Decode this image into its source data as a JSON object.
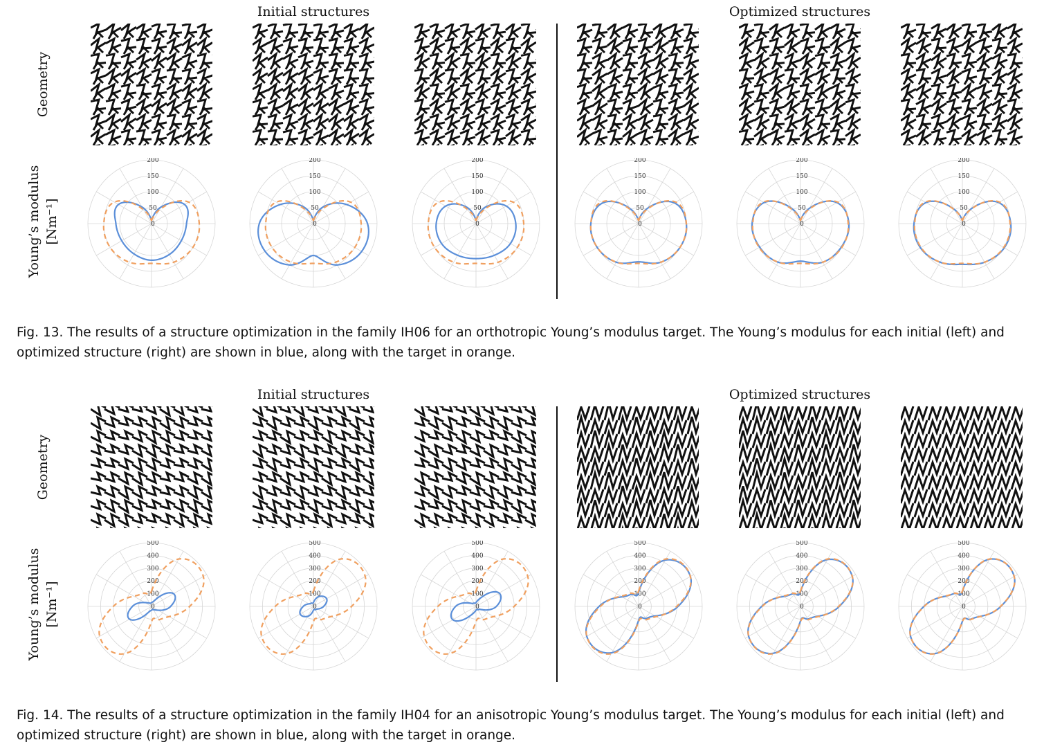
{
  "figures": [
    {
      "initial_label": "Initial structures",
      "optimized_label": "Optimized structures",
      "row_geometry_label": "Geometry",
      "row_modulus_label_line1": "Young’s modulus",
      "row_modulus_label_line2": "[Nm⁻¹]",
      "caption": "Fig. 13.  The results of a structure optimization in the family IH06 for an orthotropic Young’s modulus target. The Young’s modulus for each initial (left) and optimized structure (right) are shown in blue, along with the target in orange.",
      "colors": {
        "measured": "#5b8fd9",
        "target": "#f0a060",
        "grid": "#d6d6d6",
        "ink": "#111111"
      },
      "chart_data": {
        "type": "polar",
        "radial_ticks": [
          "0",
          "50",
          "100",
          "150",
          "200"
        ],
        "rmax": 200,
        "panels": [
          {
            "group": "initial",
            "series": [
              {
                "values": [
                  10,
                  60,
                  120,
                  110,
                  108,
                  112,
                  115,
                  110,
                  108,
                  112,
                  120,
                  60
                ]
              },
              {
                "values": [
                  10,
                  50,
                  135,
                  150,
                  150,
                  140,
                  125,
                  140,
                  150,
                  150,
                  135,
                  50
                ]
              }
            ]
          },
          {
            "group": "initial",
            "series": [
              {
                "values": [
                  10,
                  60,
                  120,
                  170,
                  175,
                  150,
                  100,
                  150,
                  175,
                  170,
                  120,
                  60
                ]
              },
              {
                "values": [
                  10,
                  50,
                  135,
                  150,
                  150,
                  140,
                  125,
                  140,
                  150,
                  150,
                  135,
                  50
                ]
              }
            ]
          },
          {
            "group": "initial",
            "series": [
              {
                "values": [
                  10,
                  60,
                  110,
                  125,
                  125,
                  115,
                  110,
                  115,
                  125,
                  125,
                  110,
                  60
                ]
              },
              {
                "values": [
                  10,
                  50,
                  135,
                  150,
                  150,
                  140,
                  125,
                  140,
                  150,
                  150,
                  135,
                  50
                ]
              }
            ]
          },
          {
            "group": "optimized",
            "series": [
              {
                "values": [
                  10,
                  55,
                  130,
                  150,
                  150,
                  140,
                  120,
                  140,
                  150,
                  150,
                  130,
                  55
                ]
              },
              {
                "values": [
                  10,
                  50,
                  135,
                  150,
                  150,
                  140,
                  125,
                  140,
                  150,
                  150,
                  135,
                  50
                ]
              }
            ]
          },
          {
            "group": "optimized",
            "series": [
              {
                "values": [
                  10,
                  55,
                  132,
                  152,
                  148,
                  140,
                  118,
                  140,
                  148,
                  152,
                  132,
                  55
                ]
              },
              {
                "values": [
                  10,
                  50,
                  135,
                  150,
                  150,
                  140,
                  125,
                  140,
                  150,
                  150,
                  135,
                  50
                ]
              }
            ]
          },
          {
            "group": "optimized",
            "series": [
              {
                "values": [
                  10,
                  52,
                  132,
                  152,
                  152,
                  140,
                  128,
                  140,
                  152,
                  152,
                  132,
                  52
                ]
              },
              {
                "values": [
                  10,
                  50,
                  135,
                  150,
                  150,
                  140,
                  125,
                  140,
                  150,
                  150,
                  135,
                  50
                ]
              }
            ]
          }
        ]
      }
    },
    {
      "initial_label": "Initial structures",
      "optimized_label": "Optimized structures",
      "row_geometry_label": "Geometry",
      "row_modulus_label_line1": "Young’s modulus",
      "row_modulus_label_line2": "[Nm⁻¹]",
      "caption": "Fig. 14.  The results of a structure optimization in the family IH04 for an anisotropic Young’s modulus target. The Young’s modulus for each initial (left) and optimized structure (right) are shown in blue, along with the target in orange.",
      "colors": {
        "measured": "#5b8fd9",
        "target": "#f0a060",
        "grid": "#d6d6d6",
        "ink": "#111111"
      },
      "chart_data": {
        "type": "polar",
        "radial_ticks": [
          "0",
          "100",
          "200",
          "300",
          "400",
          "500"
        ],
        "rmax": 500,
        "panels": [
          {
            "group": "initial",
            "series": [
              {
                "values": [
                  30,
                  60,
                  200,
                  150,
                  60,
                  30,
                  30,
                  60,
                  200,
                  150,
                  60,
                  30
                ]
              },
              {
                "values": [
                  120,
                  430,
                  470,
                  300,
                  160,
                  120,
                  120,
                  430,
                  470,
                  300,
                  160,
                  120
                ]
              }
            ]
          },
          {
            "group": "initial",
            "series": [
              {
                "values": [
                  30,
                  90,
                  120,
                  80,
                  40,
                  30,
                  30,
                  90,
                  120,
                  80,
                  40,
                  30
                ]
              },
              {
                "values": [
                  120,
                  430,
                  470,
                  300,
                  160,
                  120,
                  120,
                  430,
                  470,
                  300,
                  160,
                  120
                ]
              }
            ]
          },
          {
            "group": "initial",
            "series": [
              {
                "values": [
                  30,
                  80,
                  210,
                  160,
                  50,
                  30,
                  30,
                  80,
                  210,
                  160,
                  50,
                  30
                ]
              },
              {
                "values": [
                  120,
                  430,
                  470,
                  300,
                  160,
                  120,
                  120,
                  430,
                  470,
                  300,
                  160,
                  120
                ]
              }
            ]
          },
          {
            "group": "optimized",
            "series": [
              {
                "values": [
                  110,
                  420,
                  470,
                  310,
                  150,
                  110,
                  110,
                  420,
                  470,
                  310,
                  150,
                  110
                ]
              },
              {
                "values": [
                  120,
                  430,
                  470,
                  300,
                  160,
                  120,
                  120,
                  430,
                  470,
                  300,
                  160,
                  120
                ]
              }
            ]
          },
          {
            "group": "optimized",
            "series": [
              {
                "values": [
                  115,
                  425,
                  470,
                  305,
                  155,
                  115,
                  115,
                  425,
                  470,
                  305,
                  155,
                  115
                ]
              },
              {
                "values": [
                  120,
                  430,
                  470,
                  300,
                  160,
                  120,
                  120,
                  430,
                  470,
                  300,
                  160,
                  120
                ]
              }
            ]
          },
          {
            "group": "optimized",
            "series": [
              {
                "values": [
                  118,
                  428,
                  470,
                  302,
                  158,
                  118,
                  118,
                  428,
                  470,
                  302,
                  158,
                  118
                ]
              },
              {
                "values": [
                  120,
                  430,
                  470,
                  300,
                  160,
                  120,
                  120,
                  430,
                  470,
                  300,
                  160,
                  120
                ]
              }
            ]
          }
        ]
      }
    }
  ]
}
